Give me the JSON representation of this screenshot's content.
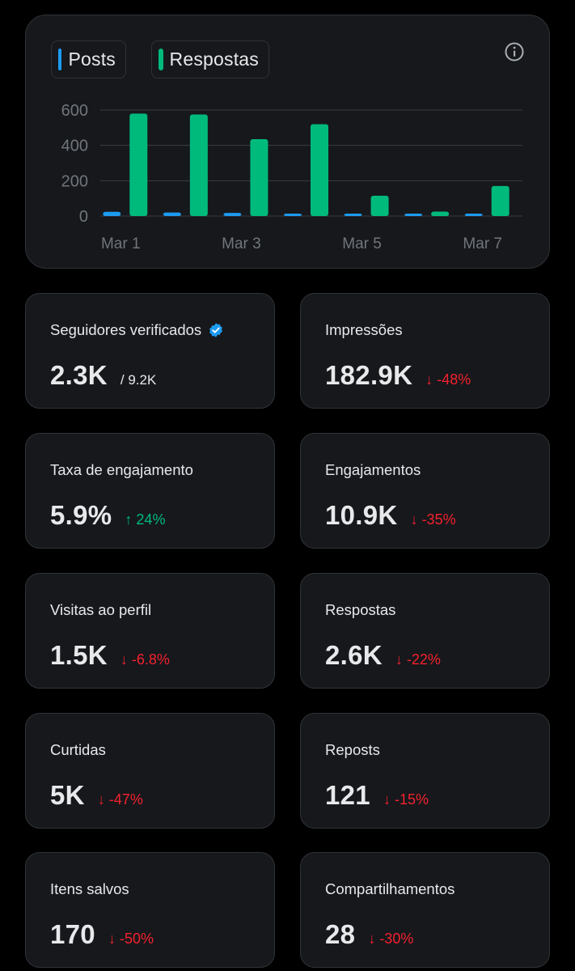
{
  "legend": {
    "posts_label": "Posts",
    "replies_label": "Respostas",
    "posts_color": "#1d9bf0",
    "replies_color": "#00ba7c"
  },
  "info_icon": "info-icon",
  "chart_data": {
    "type": "bar",
    "categories": [
      "Mar 1",
      "Mar 2",
      "Mar 3",
      "Mar 4",
      "Mar 5",
      "Mar 6",
      "Mar 7"
    ],
    "x_tick_labels": [
      "Mar 1",
      "Mar 3",
      "Mar 5",
      "Mar 7"
    ],
    "y_ticks": [
      "600",
      "400",
      "200",
      "0"
    ],
    "ylim": [
      0,
      600
    ],
    "series": [
      {
        "name": "Posts",
        "color": "#1d9bf0",
        "values": [
          24,
          20,
          18,
          14,
          14,
          10,
          10
        ]
      },
      {
        "name": "Respostas",
        "color": "#00ba7c",
        "values": [
          580,
          575,
          435,
          520,
          115,
          25,
          170
        ]
      }
    ],
    "grid": true,
    "legend_position": "top-left"
  },
  "stats": [
    {
      "label": "Seguidores verificados",
      "value": "2.3K",
      "total": "/ 9.2K",
      "verified": true
    },
    {
      "label": "Impressões",
      "value": "182.9K",
      "arrow": "↓",
      "change": "-48%",
      "direction": "down"
    },
    {
      "label": "Taxa de engajamento",
      "value": "5.9%",
      "arrow": "↑",
      "change": "24%",
      "direction": "up"
    },
    {
      "label": "Engajamentos",
      "value": "10.9K",
      "arrow": "↓",
      "change": "-35%",
      "direction": "down"
    },
    {
      "label": "Visitas ao perfil",
      "value": "1.5K",
      "arrow": "↓",
      "change": "-6.8%",
      "direction": "down"
    },
    {
      "label": "Respostas",
      "value": "2.6K",
      "arrow": "↓",
      "change": "-22%",
      "direction": "down"
    },
    {
      "label": "Curtidas",
      "value": "5K",
      "arrow": "↓",
      "change": "-47%",
      "direction": "down"
    },
    {
      "label": "Reposts",
      "value": "121",
      "arrow": "↓",
      "change": "-15%",
      "direction": "down"
    },
    {
      "label": "Itens salvos",
      "value": "170",
      "arrow": "↓",
      "change": "-50%",
      "direction": "down"
    },
    {
      "label": "Compartilhamentos",
      "value": "28",
      "arrow": "↓",
      "change": "-30%",
      "direction": "down"
    }
  ]
}
